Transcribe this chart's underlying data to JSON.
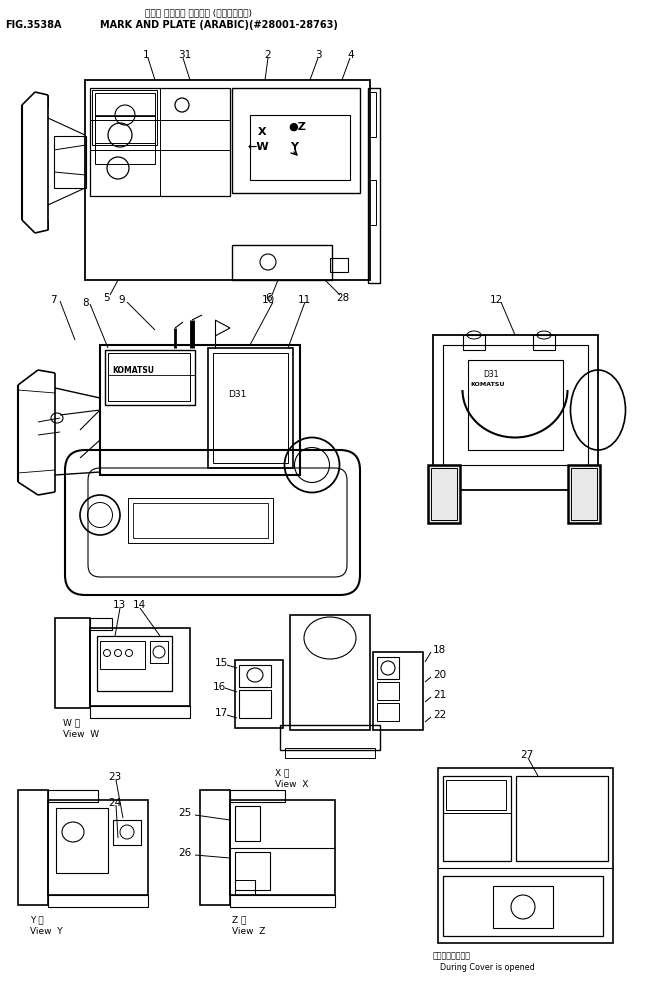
{
  "fig_label": "FIG.3538A",
  "title_jp": "マーク オヤビプ プレート (アラビアコー)",
  "title_en": "MARK AND PLATE (ARABIC)(#28001-28763)",
  "bg": "#ffffff",
  "lc": "#000000"
}
